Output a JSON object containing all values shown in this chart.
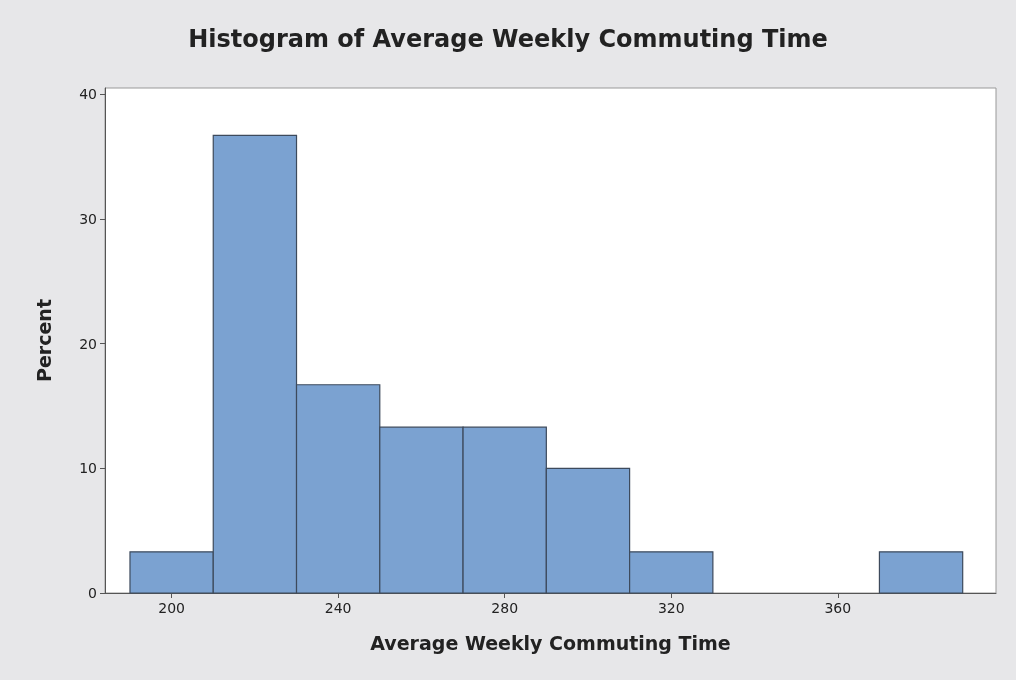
{
  "chart_data": {
    "type": "histogram",
    "title": "Histogram of Average Weekly Commuting Time",
    "xlabel": "Average Weekly Commuting Time",
    "ylabel": "Percent",
    "bins": [
      190,
      210,
      230,
      250,
      270,
      290,
      310,
      330,
      350,
      370,
      390
    ],
    "values": [
      3.3,
      36.7,
      16.7,
      13.3,
      13.3,
      10,
      3.3,
      0,
      0,
      3.3
    ],
    "color": "#7ba2d1",
    "xlim": [
      184,
      398
    ],
    "ylim": [
      0,
      40.5
    ],
    "xticks": [
      200,
      240,
      280,
      320,
      360
    ],
    "yticks": [
      0,
      10,
      20,
      30,
      40
    ],
    "grid": false
  }
}
